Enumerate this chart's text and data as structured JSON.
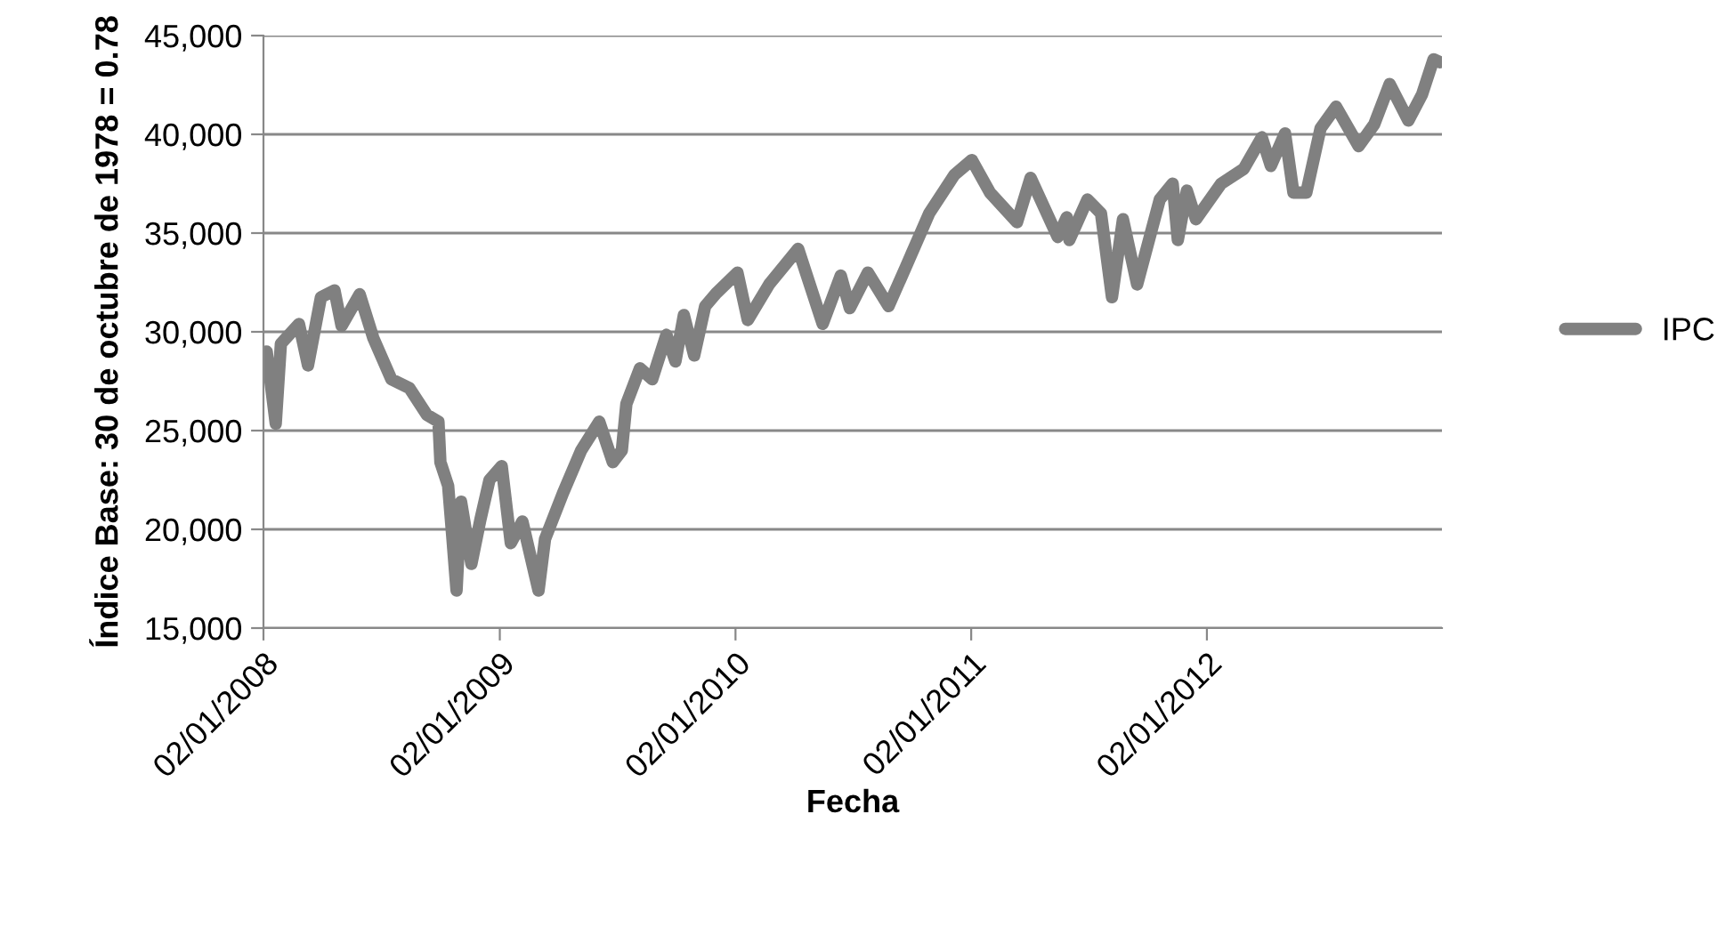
{
  "chart_data": {
    "type": "line",
    "xlabel": "Fecha",
    "ylabel": "Índice Base: 30 de octubre de 1978 = 0.78",
    "x": [
      "2008-01-07",
      "2008-01-21",
      "2008-01-29",
      "2008-02-26",
      "2008-03-11",
      "2008-03-31",
      "2008-04-21",
      "2008-05-02",
      "2008-05-30",
      "2008-06-20",
      "2008-07-18",
      "2008-08-15",
      "2008-09-11",
      "2008-09-29",
      "2008-10-02",
      "2008-10-14",
      "2008-10-20",
      "2008-10-27",
      "2008-11-03",
      "2008-11-19",
      "2008-12-03",
      "2008-12-17",
      "2009-01-05",
      "2009-01-19",
      "2009-02-06",
      "2009-03-03",
      "2009-03-13",
      "2009-04-10",
      "2009-05-08",
      "2009-06-05",
      "2009-06-26",
      "2009-07-10",
      "2009-07-17",
      "2009-08-07",
      "2009-08-26",
      "2009-09-17",
      "2009-10-01",
      "2009-10-14",
      "2009-10-30",
      "2009-11-16",
      "2009-12-03",
      "2010-01-05",
      "2010-01-21",
      "2010-02-23",
      "2010-04-09",
      "2010-05-17",
      "2010-06-14",
      "2010-06-28",
      "2010-07-26",
      "2010-08-27",
      "2010-09-23",
      "2010-10-29",
      "2010-12-07",
      "2011-01-03",
      "2011-01-31",
      "2011-03-14",
      "2011-04-04",
      "2011-05-16",
      "2011-05-30",
      "2011-06-03",
      "2011-07-01",
      "2011-07-22",
      "2011-08-08",
      "2011-08-25",
      "2011-09-16",
      "2011-10-21",
      "2011-11-10",
      "2011-11-18",
      "2011-12-02",
      "2011-12-16",
      "2012-01-24",
      "2012-02-28",
      "2012-03-27",
      "2012-04-10",
      "2012-05-02",
      "2012-05-15",
      "2012-06-04",
      "2012-06-26",
      "2012-07-20",
      "2012-08-24",
      "2012-09-17",
      "2012-10-11",
      "2012-11-09",
      "2012-11-30",
      "2012-12-18",
      "2012-12-28"
    ],
    "series": [
      {
        "name": "IPC",
        "color": "#808080",
        "values": [
          29000,
          25350,
          29400,
          30400,
          28300,
          31750,
          32100,
          30300,
          31900,
          29700,
          27600,
          27150,
          25800,
          25450,
          23400,
          22200,
          19800,
          16900,
          21400,
          18250,
          20500,
          22500,
          23200,
          19300,
          20400,
          16900,
          19500,
          21850,
          24000,
          25450,
          23400,
          24000,
          26350,
          28150,
          27600,
          29850,
          28500,
          30850,
          28800,
          31300,
          31950,
          33000,
          30600,
          32400,
          34200,
          30400,
          32850,
          31200,
          33000,
          31300,
          33300,
          36000,
          37950,
          38700,
          37050,
          35550,
          37800,
          34800,
          35800,
          34650,
          36700,
          36000,
          31750,
          35700,
          32400,
          36700,
          37500,
          34650,
          37150,
          35700,
          37500,
          38250,
          39850,
          38400,
          40050,
          37050,
          37050,
          40300,
          41400,
          39400,
          40500,
          42550,
          40700,
          42000,
          43800,
          43650
        ]
      }
    ],
    "xlim": [
      "2008-01-02",
      "2012-12-31"
    ],
    "xticks": [
      {
        "value": "2008-01-02",
        "label": "02/01/2008"
      },
      {
        "value": "2009-01-02",
        "label": "02/01/2009"
      },
      {
        "value": "2010-01-02",
        "label": "02/01/2010"
      },
      {
        "value": "2011-01-02",
        "label": "02/01/2011"
      },
      {
        "value": "2012-01-02",
        "label": "02/01/2012"
      }
    ],
    "ylim": [
      15000,
      45000
    ],
    "yticks": [
      {
        "value": 15000,
        "label": "15,000"
      },
      {
        "value": 20000,
        "label": "20,000"
      },
      {
        "value": 25000,
        "label": "25,000"
      },
      {
        "value": 30000,
        "label": "30,000"
      },
      {
        "value": 35000,
        "label": "35,000"
      },
      {
        "value": 40000,
        "label": "40,000"
      },
      {
        "value": 45000,
        "label": "45,000"
      }
    ],
    "grid": "y",
    "legend": "right",
    "marker": "none",
    "line_style": "solid"
  }
}
